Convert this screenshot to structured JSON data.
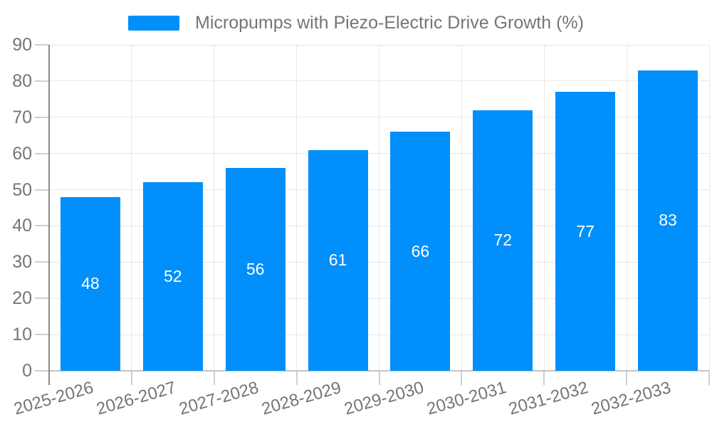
{
  "chart_data": {
    "type": "bar",
    "categories": [
      "2025-2026",
      "2026-2027",
      "2027-2028",
      "2028-2029",
      "2029-2030",
      "2030-2031",
      "2031-2032",
      "2032-2033"
    ],
    "series": [
      {
        "name": "Micropumps with Piezo-Electric Drive Growth (%)",
        "values": [
          48,
          52,
          56,
          61,
          66,
          72,
          77,
          83
        ]
      }
    ],
    "title": "",
    "xlabel": "",
    "ylabel": "",
    "ylim": [
      0,
      90
    ],
    "ytick_step": 10,
    "yticks": [
      0,
      10,
      20,
      30,
      40,
      50,
      60,
      70,
      80,
      90
    ],
    "grid": "both",
    "legend_position": "top",
    "bar_value_labels": "inside-center",
    "colors": {
      "bar": "#008FFB",
      "axis_label": "#757575",
      "bar_value_label": "#ffffff",
      "gridline": "#e7e7e7",
      "y_axis_line": "#8a8a8a",
      "x_axis_line": "#c4c4c4",
      "tick": "#cfcfcf",
      "background": "#ffffff"
    }
  }
}
